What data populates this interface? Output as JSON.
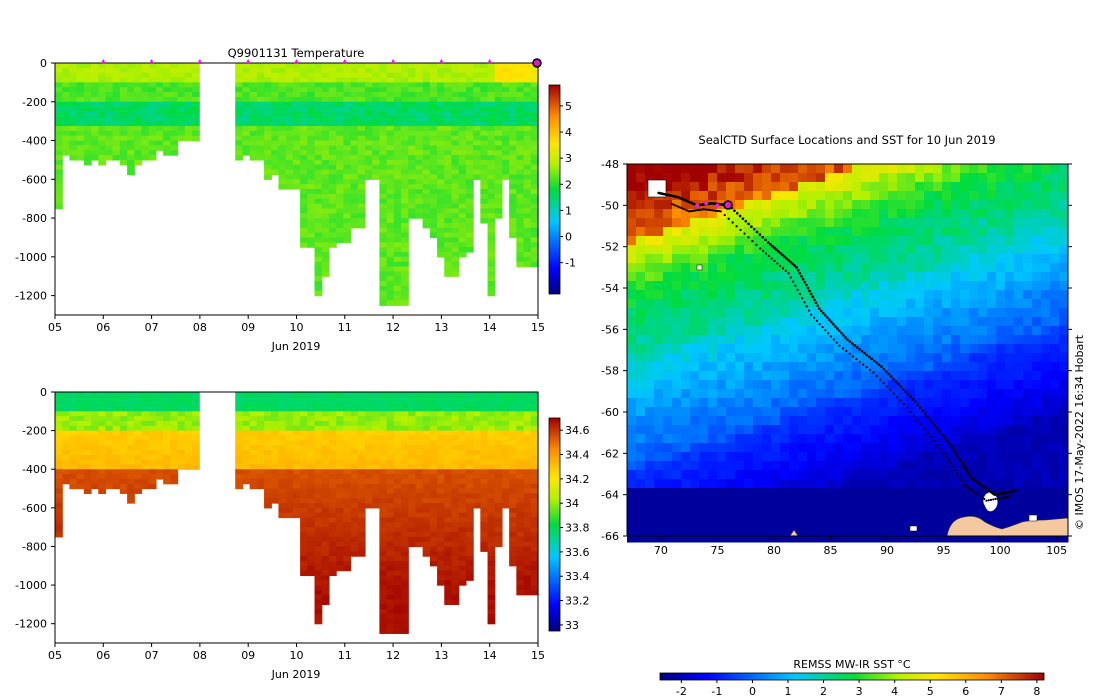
{
  "chart_data": [
    {
      "type": "heatmap",
      "title": "Q9901131  Temperature",
      "xlabel": "Jun 2019",
      "ylabel": "",
      "x_ticks": [
        "05",
        "06",
        "07",
        "08",
        "09",
        "10",
        "11",
        "12",
        "13",
        "14",
        "15"
      ],
      "y_ticks": [
        "0",
        "-200",
        "-400",
        "-600",
        "-800",
        "-1000",
        "-1200"
      ],
      "ylim": [
        -1300,
        0
      ],
      "colorbar": {
        "min": -2.2,
        "max": 5.8,
        "ticks": [
          "5",
          "4",
          "3",
          "2",
          "1",
          "0",
          "-1"
        ],
        "tick_values": [
          5,
          4,
          3,
          2,
          1,
          0,
          -1
        ]
      },
      "profile_markers_days": [
        6,
        7,
        8,
        9,
        10,
        11,
        12,
        13,
        14
      ],
      "latest_marker_day": 15,
      "gap_days": [
        7.85,
        8.4
      ]
    },
    {
      "type": "heatmap",
      "title": "",
      "xlabel": "Jun 2019",
      "ylabel": "",
      "x_ticks": [
        "05",
        "06",
        "07",
        "08",
        "09",
        "10",
        "11",
        "12",
        "13",
        "14",
        "15"
      ],
      "y_ticks": [
        "0",
        "-200",
        "-400",
        "-600",
        "-800",
        "-1000",
        "-1200"
      ],
      "ylim": [
        -1300,
        0
      ],
      "colorbar": {
        "min": 32.95,
        "max": 34.7,
        "ticks": [
          "34.6",
          "34.4",
          "34.2",
          "34",
          "33.8",
          "33.6",
          "33.4",
          "33.2",
          "33"
        ],
        "tick_values": [
          34.6,
          34.4,
          34.2,
          34.0,
          33.8,
          33.6,
          33.4,
          33.2,
          33.0
        ]
      }
    },
    {
      "type": "heatmap",
      "title": "SealCTD Surface Locations and SST for 10 Jun 2019",
      "xlabel": "",
      "ylabel": "",
      "x_ticks": [
        "70",
        "75",
        "80",
        "85",
        "90",
        "95",
        "100",
        "105"
      ],
      "y_ticks": [
        "-48",
        "-50",
        "-52",
        "-54",
        "-56",
        "-58",
        "-60",
        "-62",
        "-64",
        "-66"
      ],
      "xlim": [
        67,
        106
      ],
      "ylim": [
        -66,
        -48
      ],
      "colorbar": {
        "label": "REMSS MW-IR SST °C",
        "min": -2.6,
        "max": 8.2,
        "ticks": [
          "-2",
          "-1",
          "0",
          "1",
          "2",
          "3",
          "4",
          "5",
          "6",
          "7",
          "8"
        ]
      },
      "credit": "© IMOS 17-May-2022 16:34 Hobart",
      "track_positions": [
        [
          69.8,
          -49.4
        ],
        [
          71.5,
          -49.6
        ],
        [
          73.2,
          -50.0
        ],
        [
          74.5,
          -49.9
        ],
        [
          76.0,
          -50.0
        ],
        [
          79.5,
          -51.8
        ],
        [
          82.0,
          -53.0
        ],
        [
          84.0,
          -55.0
        ],
        [
          86.5,
          -56.5
        ],
        [
          89.5,
          -57.8
        ],
        [
          92.5,
          -59.5
        ],
        [
          95.5,
          -61.5
        ],
        [
          97.5,
          -63.2
        ],
        [
          99.5,
          -64.0
        ],
        [
          101.5,
          -63.8
        ]
      ]
    }
  ]
}
